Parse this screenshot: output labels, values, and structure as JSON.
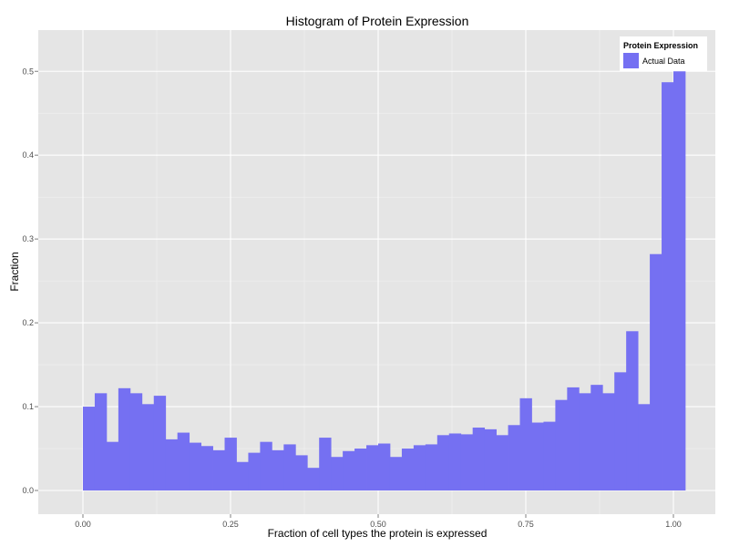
{
  "chart_data": {
    "type": "bar",
    "title": "Histogram of Protein Expression",
    "xlabel": "Fraction of cell types the protein is expressed",
    "ylabel": "Fraction",
    "xlim": [
      -0.07,
      1.07
    ],
    "ylim": [
      -0.03,
      0.55
    ],
    "x_ticks": [
      0.0,
      0.25,
      0.5,
      0.75,
      1.0
    ],
    "x_tick_labels": [
      "0.00",
      "0.25",
      "0.50",
      "0.75",
      "1.00"
    ],
    "y_ticks": [
      0.0,
      0.1,
      0.2,
      0.3,
      0.4,
      0.5
    ],
    "y_tick_labels": [
      "0.0",
      "0.1",
      "0.2",
      "0.3",
      "0.4",
      "0.5"
    ],
    "grid": true,
    "legend": {
      "title": "Protein Expression",
      "position": "top-right"
    },
    "series": [
      {
        "name": "Actual Data",
        "color": "#7570f2",
        "bin_start": 0.0,
        "bin_width": 0.02,
        "values": [
          0.1,
          0.116,
          0.058,
          0.122,
          0.116,
          0.103,
          0.113,
          0.061,
          0.069,
          0.057,
          0.053,
          0.048,
          0.063,
          0.034,
          0.045,
          0.058,
          0.048,
          0.055,
          0.042,
          0.027,
          0.063,
          0.04,
          0.047,
          0.05,
          0.054,
          0.056,
          0.04,
          0.05,
          0.054,
          0.055,
          0.066,
          0.068,
          0.067,
          0.075,
          0.073,
          0.066,
          0.078,
          0.11,
          0.081,
          0.082,
          0.108,
          0.123,
          0.116,
          0.126,
          0.116,
          0.141,
          0.19,
          0.103,
          0.282,
          0.487,
          0.5
        ]
      }
    ]
  }
}
